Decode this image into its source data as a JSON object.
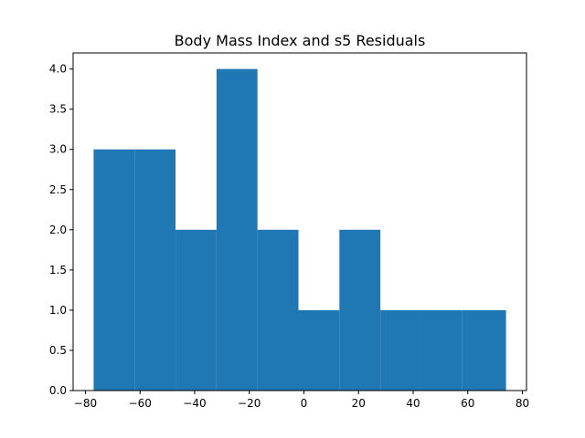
{
  "chart_data": {
    "type": "bar",
    "title": "Body Mass Index and s5 Residuals",
    "xlabel": "",
    "ylabel": "",
    "bin_edges": [
      -77,
      -62,
      -47,
      -32,
      -17,
      -2,
      13,
      28,
      43,
      58,
      74
    ],
    "counts": [
      3,
      3,
      2,
      4,
      2,
      1,
      2,
      1,
      1,
      1
    ],
    "xlim": [
      -84.5,
      81.5
    ],
    "ylim": [
      0,
      4.2
    ],
    "xticks": [
      -80,
      -60,
      -40,
      -20,
      0,
      20,
      40,
      60,
      80
    ],
    "xtick_labels": [
      "−80",
      "−60",
      "−40",
      "−20",
      "0",
      "20",
      "40",
      "60",
      "80"
    ],
    "yticks": [
      0.0,
      0.5,
      1.0,
      1.5,
      2.0,
      2.5,
      3.0,
      3.5,
      4.0
    ],
    "ytick_labels": [
      "0.0",
      "0.5",
      "1.0",
      "1.5",
      "2.0",
      "2.5",
      "3.0",
      "3.5",
      "4.0"
    ],
    "bar_color": "#1f77b4",
    "grid": false,
    "legend": "none"
  }
}
